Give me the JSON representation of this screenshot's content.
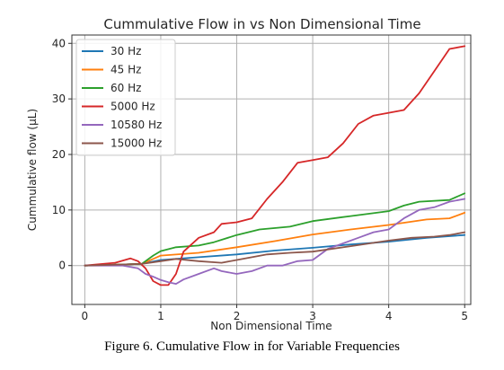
{
  "caption": "Figure 6. Cumulative Flow in for Variable Frequencies",
  "chart_data": {
    "type": "line",
    "title": "Cummulative Flow in vs Non Dimensional Time",
    "xlabel": "Non Dimensional Time",
    "ylabel": "Cummulative flow (µL)",
    "xlim": [
      -0.17,
      5.08
    ],
    "ylim": [
      -7,
      41.5
    ],
    "xticks": [
      0,
      1,
      2,
      3,
      4,
      5
    ],
    "yticks": [
      0,
      10,
      20,
      30,
      40
    ],
    "grid": true,
    "legend": "top-left",
    "series": [
      {
        "name": "30 Hz",
        "color": "#1f77b4",
        "x": [
          0,
          0.5,
          0.75,
          1.0,
          1.5,
          2.0,
          2.5,
          3.0,
          3.5,
          4.0,
          4.5,
          5.0
        ],
        "y": [
          0,
          0.2,
          0.3,
          1.0,
          1.5,
          2.0,
          2.7,
          3.2,
          3.8,
          4.3,
          5.0,
          5.5
        ]
      },
      {
        "name": "45 Hz",
        "color": "#ff7f0e",
        "x": [
          0,
          0.5,
          0.75,
          0.9,
          1.0,
          1.5,
          2.0,
          2.5,
          3.0,
          3.5,
          4.0,
          4.5,
          4.8,
          5.0
        ],
        "y": [
          0,
          0.2,
          0.3,
          1.2,
          1.8,
          2.3,
          3.3,
          4.4,
          5.6,
          6.5,
          7.3,
          8.3,
          8.5,
          9.5
        ]
      },
      {
        "name": "60 Hz",
        "color": "#2ca02c",
        "x": [
          0,
          0.5,
          0.75,
          0.9,
          1.0,
          1.2,
          1.5,
          1.7,
          2.0,
          2.3,
          2.7,
          3.0,
          3.5,
          4.0,
          4.2,
          4.4,
          4.8,
          5.0
        ],
        "y": [
          0,
          0.2,
          0.3,
          1.8,
          2.6,
          3.3,
          3.6,
          4.2,
          5.5,
          6.5,
          7.0,
          8.0,
          8.9,
          9.8,
          10.8,
          11.5,
          11.8,
          13.0
        ]
      },
      {
        "name": "5000 Hz",
        "color": "#d62728",
        "x": [
          0,
          0.4,
          0.6,
          0.7,
          0.8,
          0.9,
          1.0,
          1.1,
          1.2,
          1.3,
          1.5,
          1.7,
          1.8,
          2.0,
          2.2,
          2.4,
          2.6,
          2.8,
          3.0,
          3.2,
          3.4,
          3.6,
          3.8,
          4.0,
          4.2,
          4.4,
          4.6,
          4.8,
          5.0
        ],
        "y": [
          0,
          0.5,
          1.3,
          0.8,
          -0.5,
          -2.8,
          -3.5,
          -3.5,
          -1.5,
          2.5,
          5.0,
          6.0,
          7.5,
          7.8,
          8.5,
          12.0,
          15.0,
          18.5,
          19.0,
          19.5,
          22.0,
          25.5,
          27.0,
          27.5,
          28.0,
          31.0,
          35.0,
          39.0,
          39.5
        ]
      },
      {
        "name": "10580 Hz",
        "color": "#9467bd",
        "x": [
          0,
          0.5,
          0.7,
          0.8,
          0.9,
          1.0,
          1.1,
          1.2,
          1.3,
          1.5,
          1.7,
          1.8,
          2.0,
          2.2,
          2.4,
          2.6,
          2.8,
          3.0,
          3.2,
          3.4,
          3.6,
          3.8,
          4.0,
          4.2,
          4.4,
          4.6,
          4.8,
          5.0
        ],
        "y": [
          0,
          0,
          -0.5,
          -1.5,
          -2.0,
          -2.6,
          -3.0,
          -3.3,
          -2.5,
          -1.5,
          -0.5,
          -1.0,
          -1.5,
          -1.0,
          0.0,
          0.0,
          0.8,
          1.0,
          3.0,
          4.0,
          5.0,
          6.0,
          6.5,
          8.5,
          10.0,
          10.5,
          11.5,
          12.0
        ]
      },
      {
        "name": "15000 Hz",
        "color": "#8c564b",
        "x": [
          0,
          0.5,
          0.75,
          1.0,
          1.2,
          1.5,
          1.8,
          2.0,
          2.4,
          2.7,
          3.0,
          3.5,
          4.0,
          4.3,
          4.6,
          4.8,
          5.0
        ],
        "y": [
          0,
          0.2,
          0.3,
          0.8,
          1.2,
          0.8,
          0.5,
          1.0,
          2.0,
          2.3,
          2.5,
          3.5,
          4.5,
          5.0,
          5.2,
          5.5,
          6.0
        ]
      }
    ]
  }
}
